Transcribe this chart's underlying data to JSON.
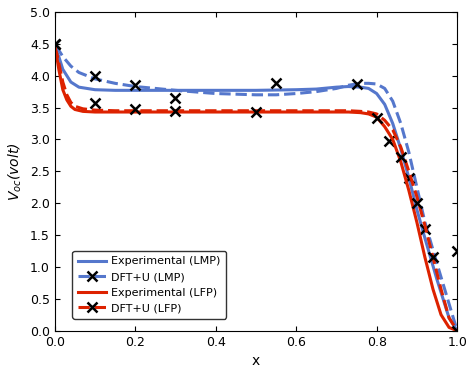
{
  "title": "",
  "xlabel": "x",
  "ylabel": "$V_{oc}$(volt)",
  "xlim": [
    0,
    1.0
  ],
  "ylim": [
    0,
    5
  ],
  "yticks": [
    0,
    0.5,
    1,
    1.5,
    2,
    2.5,
    3,
    3.5,
    4,
    4.5,
    5
  ],
  "xticks": [
    0,
    0.2,
    0.4,
    0.6,
    0.8,
    1.0
  ],
  "blue_solid_x": [
    0.0,
    0.01,
    0.02,
    0.04,
    0.06,
    0.1,
    0.15,
    0.2,
    0.3,
    0.4,
    0.5,
    0.6,
    0.65,
    0.7,
    0.73,
    0.76,
    0.78,
    0.8,
    0.82,
    0.84,
    0.86,
    0.88,
    0.9,
    0.92,
    0.95,
    0.98,
    1.0
  ],
  "blue_solid_y": [
    4.45,
    4.3,
    4.1,
    3.9,
    3.82,
    3.78,
    3.77,
    3.77,
    3.77,
    3.77,
    3.77,
    3.78,
    3.79,
    3.82,
    3.83,
    3.82,
    3.8,
    3.72,
    3.55,
    3.25,
    2.85,
    2.4,
    1.9,
    1.45,
    0.8,
    0.2,
    0.0
  ],
  "blue_dashed_x": [
    0.0,
    0.01,
    0.02,
    0.04,
    0.06,
    0.1,
    0.15,
    0.2,
    0.3,
    0.4,
    0.5,
    0.55,
    0.6,
    0.65,
    0.7,
    0.73,
    0.76,
    0.78,
    0.8,
    0.82,
    0.84,
    0.86,
    0.88,
    0.9,
    0.92,
    0.95,
    1.0
  ],
  "blue_dashed_y": [
    4.45,
    4.4,
    4.3,
    4.15,
    4.05,
    3.95,
    3.88,
    3.83,
    3.77,
    3.72,
    3.7,
    3.7,
    3.72,
    3.75,
    3.8,
    3.85,
    3.88,
    3.88,
    3.87,
    3.8,
    3.6,
    3.25,
    2.8,
    2.25,
    1.7,
    1.05,
    0.0
  ],
  "blue_markers_x": [
    0.0,
    0.1,
    0.2,
    0.3,
    0.55,
    0.75,
    0.83,
    0.88,
    0.92,
    1.0
  ],
  "blue_markers_y": [
    4.5,
    4.0,
    3.85,
    3.65,
    3.88,
    3.87,
    2.98,
    2.4,
    1.6,
    1.25
  ],
  "red_solid_x": [
    0.0,
    0.005,
    0.01,
    0.02,
    0.03,
    0.04,
    0.05,
    0.07,
    0.1,
    0.15,
    0.2,
    0.3,
    0.4,
    0.55,
    0.65,
    0.7,
    0.73,
    0.76,
    0.78,
    0.8,
    0.82,
    0.84,
    0.86,
    0.88,
    0.9,
    0.92,
    0.94,
    0.96,
    0.98,
    1.0
  ],
  "red_solid_y": [
    4.45,
    4.3,
    4.1,
    3.78,
    3.62,
    3.52,
    3.47,
    3.44,
    3.43,
    3.43,
    3.43,
    3.43,
    3.43,
    3.43,
    3.43,
    3.43,
    3.43,
    3.42,
    3.4,
    3.35,
    3.2,
    3.0,
    2.65,
    2.2,
    1.7,
    1.15,
    0.65,
    0.25,
    0.05,
    0.0
  ],
  "red_dashed_x": [
    0.0,
    0.005,
    0.01,
    0.02,
    0.03,
    0.04,
    0.05,
    0.07,
    0.1,
    0.15,
    0.2,
    0.3,
    0.4,
    0.55,
    0.65,
    0.7,
    0.73,
    0.76,
    0.78,
    0.8,
    0.82,
    0.84,
    0.86,
    0.88,
    0.9,
    0.92,
    0.94,
    0.96,
    0.98,
    1.0
  ],
  "red_dashed_y": [
    4.45,
    4.35,
    4.2,
    3.9,
    3.7,
    3.58,
    3.52,
    3.48,
    3.46,
    3.45,
    3.45,
    3.45,
    3.45,
    3.45,
    3.45,
    3.45,
    3.45,
    3.44,
    3.43,
    3.4,
    3.3,
    3.15,
    2.88,
    2.5,
    2.1,
    1.65,
    1.15,
    0.65,
    0.2,
    0.0
  ],
  "red_markers_x": [
    0.0,
    0.1,
    0.2,
    0.3,
    0.5,
    0.8,
    0.86,
    0.9,
    0.94,
    1.0
  ],
  "red_markers_y": [
    4.5,
    3.57,
    3.47,
    3.45,
    3.43,
    3.33,
    2.73,
    2.0,
    1.15,
    0.0
  ],
  "blue_color": "#5577CC",
  "red_color": "#DD2200",
  "marker": "x",
  "marker_color": "black",
  "marker_size": 7,
  "marker_lw": 1.8
}
